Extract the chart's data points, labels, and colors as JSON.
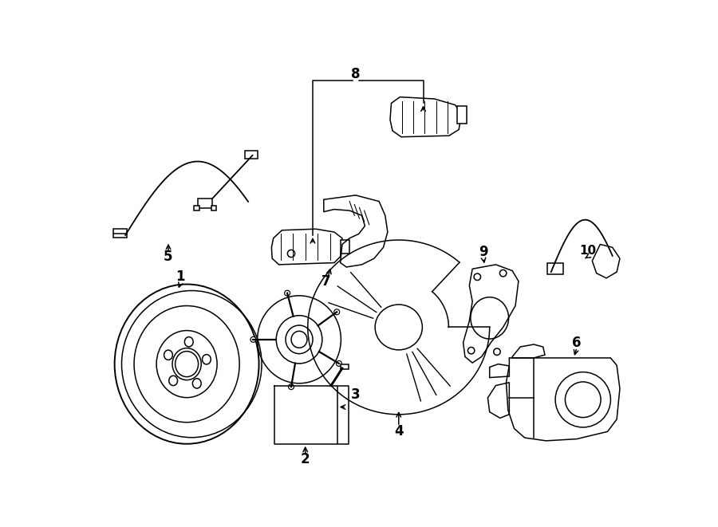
{
  "background_color": "#ffffff",
  "line_color": "#000000",
  "figsize": [
    9.0,
    6.61
  ],
  "dpi": 100,
  "lw": 1.1
}
